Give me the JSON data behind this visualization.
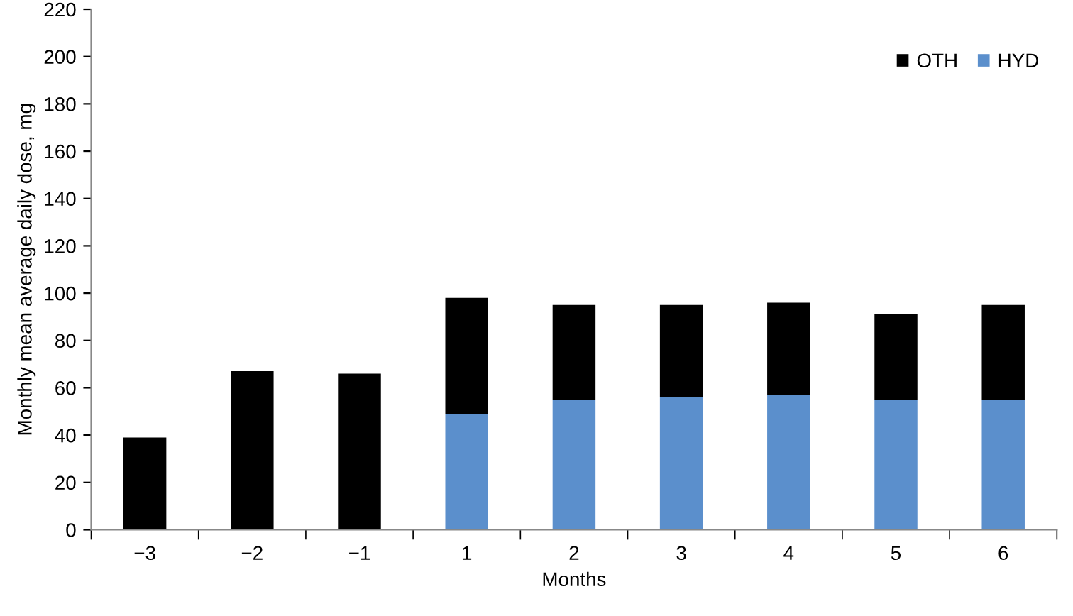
{
  "chart_data": {
    "type": "bar",
    "stacked": true,
    "xlabel": "Months",
    "ylabel": "Monthly mean average daily dose, mg",
    "categories": [
      "−3",
      "−2",
      "−1",
      "1",
      "2",
      "3",
      "4",
      "5",
      "6"
    ],
    "series": [
      {
        "name": "HYD",
        "color": "#5b8fcc",
        "values": [
          null,
          null,
          null,
          49,
          55,
          56,
          57,
          55,
          55
        ]
      },
      {
        "name": "OTH",
        "color": "#000000",
        "values": [
          39,
          67,
          66,
          49,
          40,
          39,
          39,
          36,
          40
        ]
      }
    ],
    "ylim": [
      0,
      220
    ],
    "yticks": [
      0,
      20,
      40,
      60,
      80,
      100,
      120,
      140,
      160,
      180,
      200,
      220
    ],
    "grid": false,
    "legend": "top right"
  }
}
